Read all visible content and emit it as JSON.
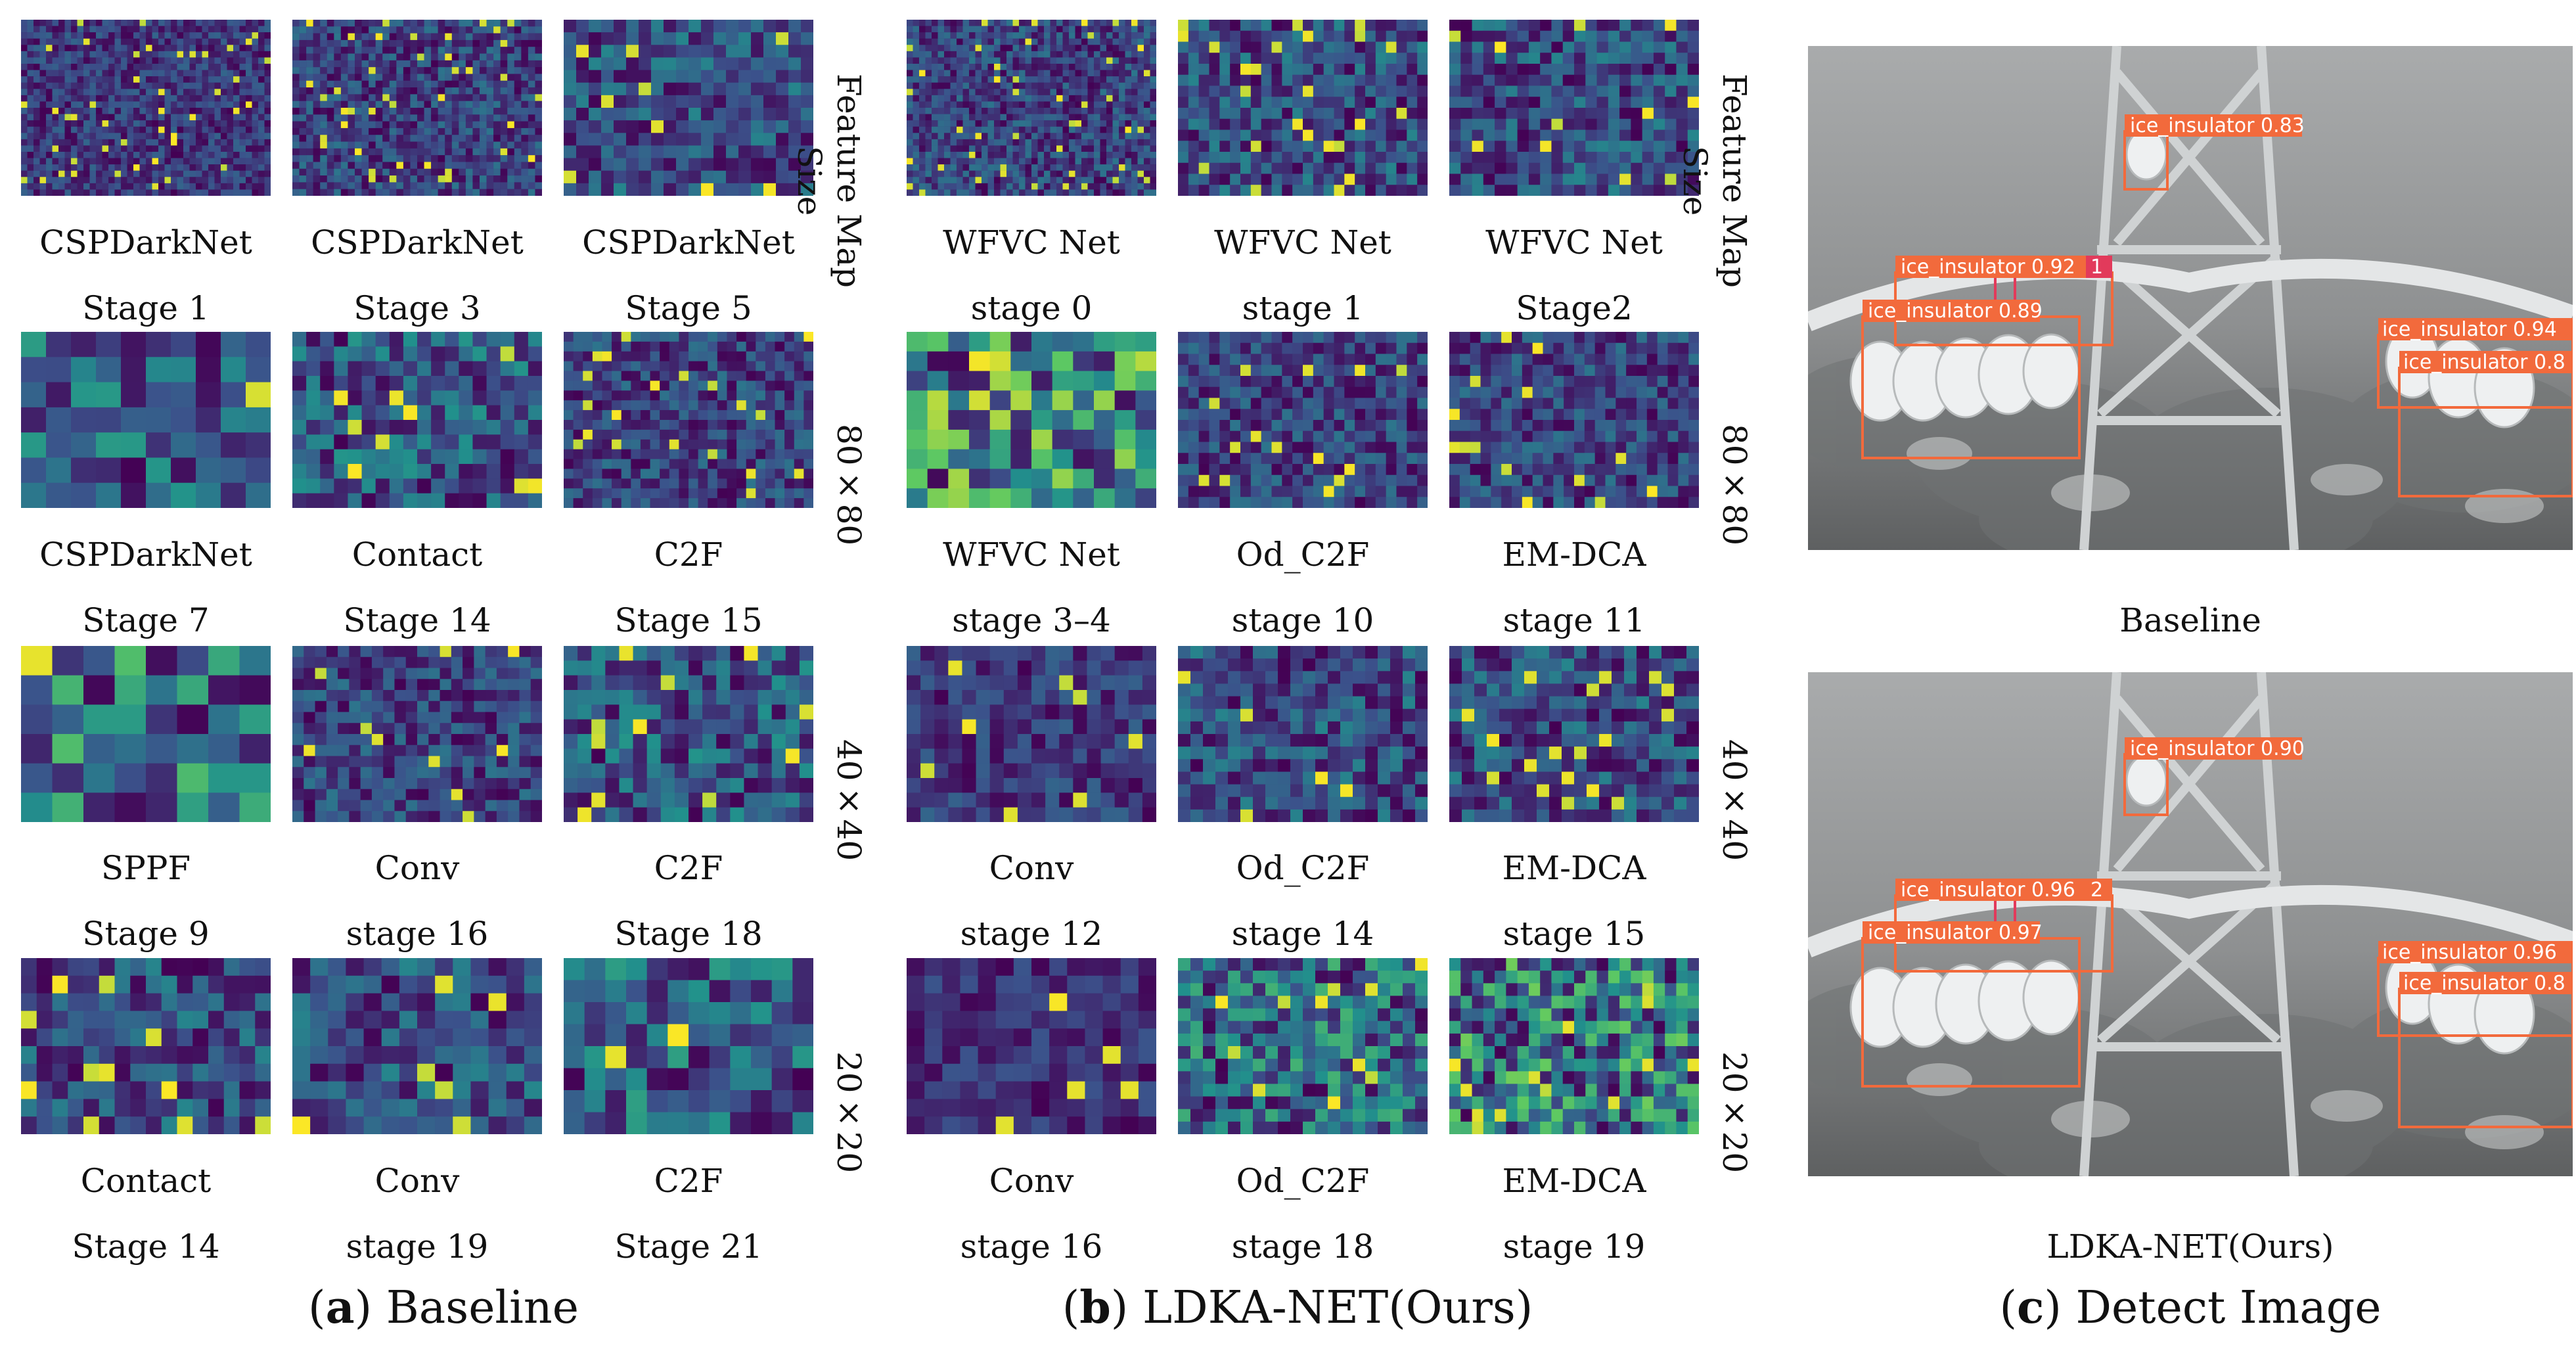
{
  "side_labels": {
    "a": [
      "Feature Map Size",
      "80×80",
      "40×40",
      "20×20"
    ],
    "b": [
      "Feature Map Size",
      "80×80",
      "40×40",
      "20×20"
    ]
  },
  "baseline_labels": [
    [
      "CSPDarkNet",
      "Stage 1"
    ],
    [
      "CSPDarkNet",
      "Stage 3"
    ],
    [
      "CSPDarkNet",
      "Stage 5"
    ],
    [
      "CSPDarkNet",
      "Stage 7"
    ],
    [
      "Contact",
      "Stage 14"
    ],
    [
      "C2F",
      "Stage 15"
    ],
    [
      "SPPF",
      "Stage 9"
    ],
    [
      "Conv",
      "stage 16"
    ],
    [
      "C2F",
      "Stage 18"
    ],
    [
      "Contact",
      "Stage 14"
    ],
    [
      "Conv",
      "stage 19"
    ],
    [
      "C2F",
      "Stage 21"
    ]
  ],
  "ldka_labels": [
    [
      "WFVC Net",
      "stage 0"
    ],
    [
      "WFVC Net",
      "stage 1"
    ],
    [
      "WFVC Net",
      "Stage2"
    ],
    [
      "WFVC Net",
      "stage 3–4"
    ],
    [
      "Od_C2F",
      "stage 10"
    ],
    [
      "EM-DCA",
      "stage 11"
    ],
    [
      "Conv",
      "stage 12"
    ],
    [
      "Od_C2F",
      "stage 14"
    ],
    [
      "EM-DCA",
      "stage 15"
    ],
    [
      "Conv",
      "stage 16"
    ],
    [
      "Od_C2F",
      "stage 18"
    ],
    [
      "EM-DCA",
      "stage 19"
    ]
  ],
  "captions": {
    "a_letter": "a",
    "a_text": "Baseline",
    "b_letter": "b",
    "b_text": "LDKA-NET(Ours)",
    "c_letter": "c",
    "c_text": "Detect Image"
  },
  "detect": {
    "top_caption": "Baseline",
    "bottom_caption": "LDKA-NET(Ours)",
    "top_boxes": [
      "ice_insulator 0.83",
      "ice_insulator 0.92",
      "1",
      "ice_insulator 0.89",
      "ice_insulator 0.94",
      "ice_insulator 0.8"
    ],
    "bottom_boxes": [
      "ice_insulator 0.90",
      "ice_insulator 0.96",
      "2",
      "ice_insulator 0.97",
      "ice_insulator 0.96",
      "ice_insulator 0.8"
    ],
    "box_color": "#f26a3c"
  },
  "colors": {
    "viridis_dark": "#440154",
    "viridis_mid": "#21918c",
    "viridis_bright": "#fde725"
  }
}
